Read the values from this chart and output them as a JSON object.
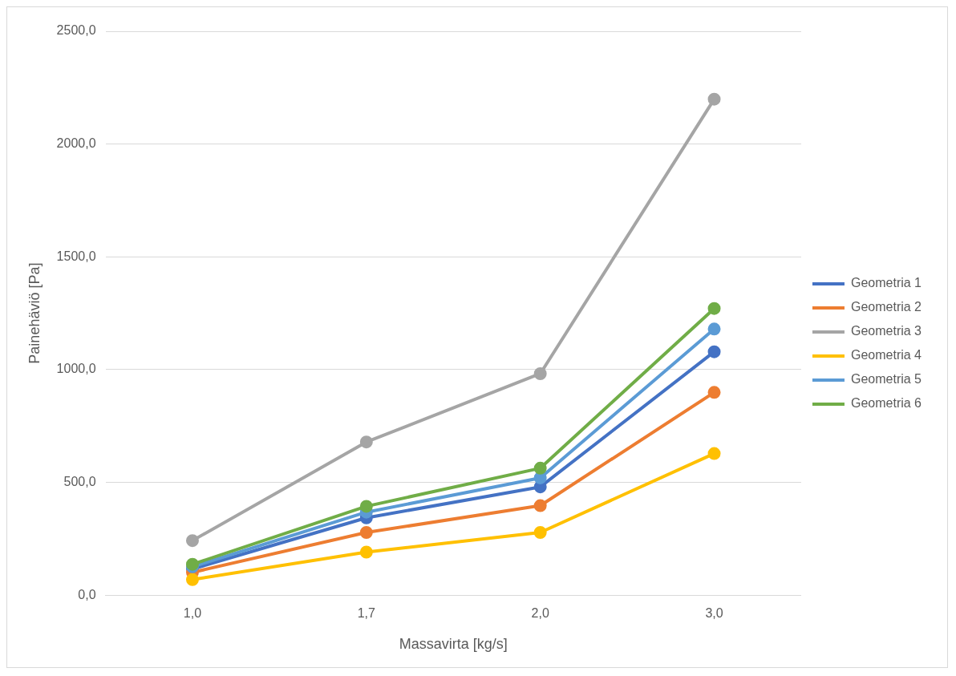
{
  "chart_data": {
    "type": "line",
    "xlabel": "Massavirta [kg/s]",
    "ylabel": "Painehäviö [Pa]",
    "categories": [
      "1,0",
      "1,7",
      "2,0",
      "3,0"
    ],
    "series": [
      {
        "name": "Geometria 1",
        "color": "#4472c4",
        "values": [
          116,
          343,
          480,
          1079
        ]
      },
      {
        "name": "Geometria 2",
        "color": "#ed7d31",
        "values": [
          101,
          278,
          397,
          899
        ]
      },
      {
        "name": "Geometria 3",
        "color": "#a5a5a5",
        "values": [
          242,
          679,
          982,
          2199
        ]
      },
      {
        "name": "Geometria 4",
        "color": "#ffc000",
        "values": [
          69,
          191,
          278,
          628
        ]
      },
      {
        "name": "Geometria 5",
        "color": "#5b9bd5",
        "values": [
          126,
          368,
          520,
          1180
        ]
      },
      {
        "name": "Geometria 6",
        "color": "#70ad47",
        "values": [
          137,
          394,
          563,
          1271
        ]
      }
    ],
    "ylim": [
      0,
      2500
    ],
    "yticks": [
      {
        "value": 0,
        "label": "0,0"
      },
      {
        "value": 500,
        "label": "500,0"
      },
      {
        "value": 1000,
        "label": "1000,0"
      },
      {
        "value": 1500,
        "label": "1500,0"
      },
      {
        "value": 2000,
        "label": "2000,0"
      },
      {
        "value": 2500,
        "label": "2500,0"
      }
    ],
    "grid": "y",
    "legend": "right",
    "marker": "circle",
    "line_style": "solid"
  }
}
